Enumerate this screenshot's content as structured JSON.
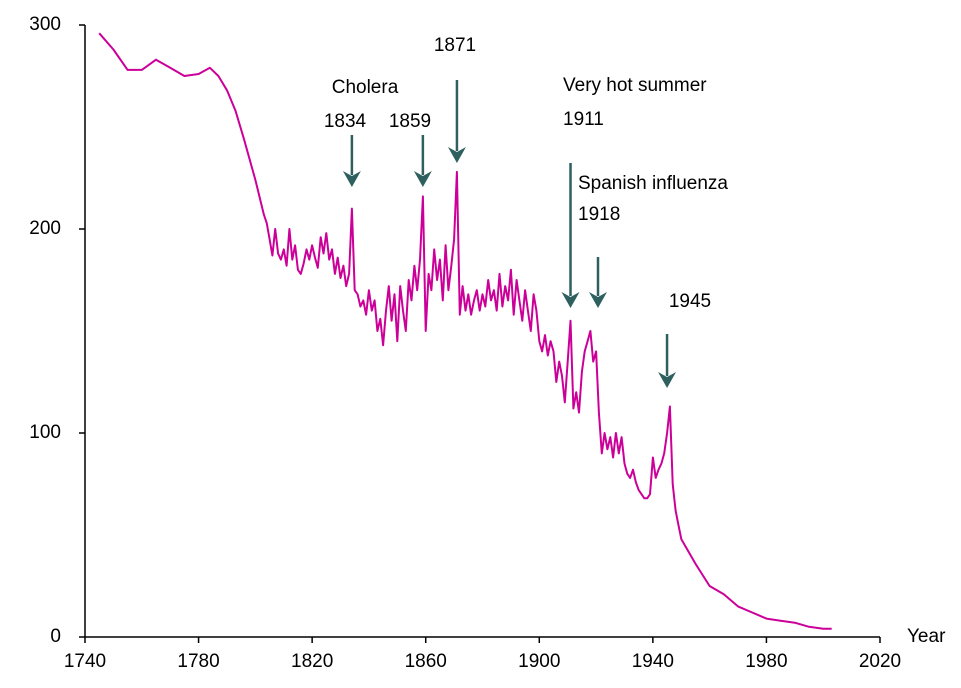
{
  "chart_data": {
    "type": "line",
    "x_label": "Year",
    "x": [
      1745,
      1750,
      1755,
      1760,
      1765,
      1770,
      1775,
      1780,
      1784,
      1787,
      1790,
      1793,
      1796,
      1800,
      1803,
      1804,
      1805,
      1806,
      1807,
      1808,
      1809,
      1810,
      1811,
      1812,
      1813,
      1814,
      1815,
      1816,
      1817,
      1818,
      1819,
      1820,
      1821,
      1822,
      1823,
      1824,
      1825,
      1826,
      1827,
      1828,
      1829,
      1830,
      1831,
      1832,
      1833,
      1834,
      1835,
      1836,
      1837,
      1838,
      1839,
      1840,
      1841,
      1842,
      1843,
      1844,
      1845,
      1846,
      1847,
      1848,
      1849,
      1850,
      1851,
      1852,
      1853,
      1854,
      1855,
      1856,
      1857,
      1858,
      1859,
      1860,
      1861,
      1862,
      1863,
      1864,
      1865,
      1866,
      1867,
      1868,
      1869,
      1870,
      1871,
      1872,
      1873,
      1874,
      1875,
      1876,
      1877,
      1878,
      1879,
      1880,
      1881,
      1882,
      1883,
      1884,
      1885,
      1886,
      1887,
      1888,
      1889,
      1890,
      1891,
      1892,
      1893,
      1894,
      1895,
      1896,
      1897,
      1898,
      1899,
      1900,
      1901,
      1902,
      1903,
      1904,
      1905,
      1906,
      1907,
      1908,
      1909,
      1910,
      1911,
      1912,
      1913,
      1914,
      1915,
      1916,
      1917,
      1918,
      1919,
      1920,
      1921,
      1922,
      1923,
      1924,
      1925,
      1926,
      1927,
      1928,
      1929,
      1930,
      1931,
      1932,
      1933,
      1934,
      1935,
      1936,
      1937,
      1938,
      1939,
      1940,
      1941,
      1942,
      1943,
      1944,
      1945,
      1946,
      1947,
      1948,
      1949,
      1950,
      1955,
      1960,
      1965,
      1970,
      1975,
      1980,
      1985,
      1990,
      1995,
      2000,
      2003
    ],
    "series": [
      {
        "color": "#cc0099",
        "values": [
          296,
          288,
          278,
          278,
          283,
          279,
          275,
          276,
          279,
          275,
          268,
          258,
          244,
          224,
          207,
          203,
          195,
          187,
          200,
          188,
          185,
          190,
          182,
          200,
          185,
          192,
          180,
          178,
          183,
          190,
          185,
          192,
          186,
          181,
          196,
          188,
          198,
          185,
          190,
          178,
          186,
          176,
          182,
          172,
          178,
          210,
          170,
          168,
          162,
          165,
          158,
          170,
          160,
          165,
          150,
          156,
          143,
          160,
          172,
          155,
          168,
          145,
          172,
          160,
          150,
          175,
          165,
          182,
          170,
          185,
          216,
          150,
          178,
          170,
          190,
          175,
          185,
          165,
          192,
          170,
          182,
          195,
          228,
          158,
          172,
          160,
          168,
          158,
          165,
          170,
          160,
          168,
          162,
          175,
          165,
          170,
          160,
          178,
          162,
          172,
          165,
          180,
          158,
          175,
          165,
          155,
          170,
          160,
          150,
          168,
          160,
          145,
          140,
          148,
          138,
          145,
          140,
          125,
          135,
          128,
          115,
          135,
          155,
          112,
          120,
          110,
          130,
          140,
          145,
          150,
          135,
          140,
          110,
          90,
          100,
          92,
          98,
          88,
          100,
          90,
          98,
          85,
          80,
          78,
          82,
          76,
          72,
          70,
          68,
          68,
          70,
          88,
          78,
          82,
          85,
          90,
          100,
          113,
          75,
          62,
          55,
          48,
          36,
          25,
          21,
          15,
          12,
          9,
          8,
          7,
          5,
          4,
          4
        ]
      }
    ],
    "xlim": [
      1740,
      2020
    ],
    "ylim": [
      0,
      300
    ],
    "xticks": [
      1740,
      1780,
      1820,
      1860,
      1900,
      1940,
      1980,
      2020
    ],
    "yticks": [
      0,
      100,
      200,
      300
    ],
    "annotations": [
      {
        "lines": [
          "Cholera",
          "1834"
        ],
        "x": 1834
      },
      {
        "lines": [
          "1859"
        ],
        "x": 1859
      },
      {
        "lines": [
          "1871"
        ],
        "x": 1871
      },
      {
        "lines": [
          "Very hot summer",
          "1911"
        ],
        "x": 1911
      },
      {
        "lines": [
          "Spanish influenza",
          "1918"
        ],
        "x": 1918
      },
      {
        "lines": [
          "1945"
        ],
        "x": 1945
      }
    ]
  }
}
